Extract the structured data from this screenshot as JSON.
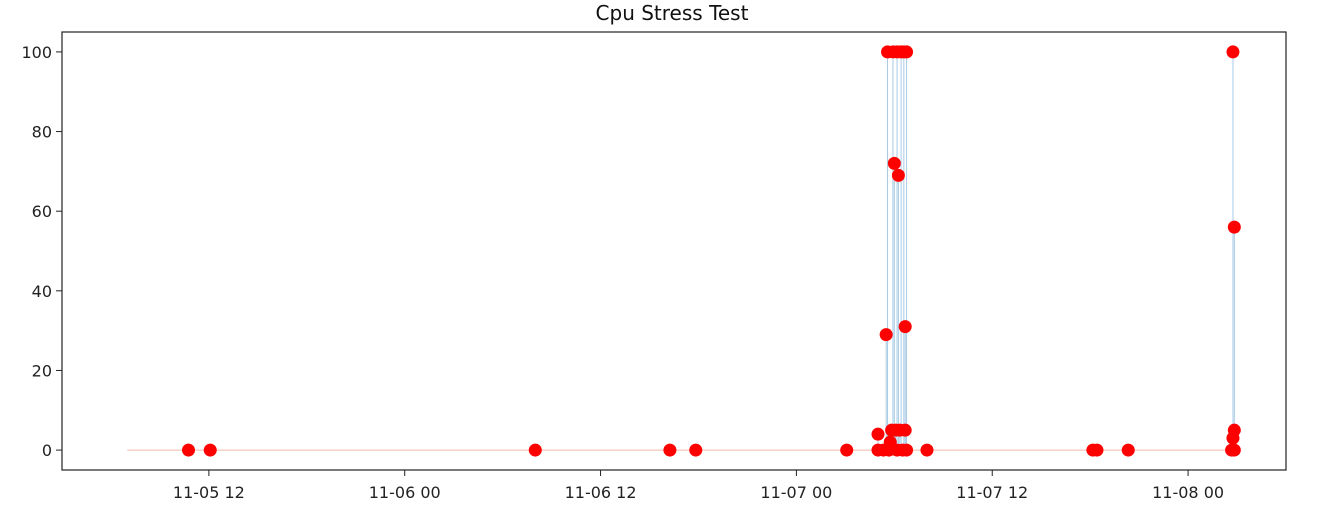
{
  "chart_data": {
    "type": "scatter",
    "title": "Cpu Stress Test",
    "xlabel": "",
    "ylabel": "",
    "x_tick_labels": [
      "11-05 12",
      "11-06 00",
      "11-06 12",
      "11-07 00",
      "11-07 12",
      "11-08 00"
    ],
    "x_tick_dates": [
      "2023-11-05 12:00",
      "2023-11-06 00:00",
      "2023-11-06 12:00",
      "2023-11-07 00:00",
      "2023-11-07 12:00",
      "2023-11-08 00:00"
    ],
    "y_ticks": [
      0,
      20,
      40,
      60,
      80,
      100
    ],
    "xlim": [
      "2023-11-05 03:00",
      "2023-11-08 06:00"
    ],
    "ylim": [
      -5,
      105
    ],
    "grid": false,
    "legend": "none",
    "colors": {
      "points": "#ff0000",
      "line": "#a9cbe6",
      "baseline": "#f2b8a8",
      "axes": "#222222"
    },
    "series": [
      {
        "x": [
          "2023-11-05 10:45",
          "2023-11-05 12:05",
          "2023-11-06 08:00",
          "2023-11-06 16:15",
          "2023-11-06 17:50",
          "2023-11-07 03:05",
          "2023-11-07 05:00",
          "2023-11-07 05:00",
          "2023-11-07 05:20",
          "2023-11-07 05:40",
          "2023-11-07 05:30",
          "2023-11-07 05:35",
          "2023-11-07 05:45",
          "2023-11-07 05:50",
          "2023-11-07 05:55",
          "2023-11-07 06:00",
          "2023-11-07 06:05",
          "2023-11-07 06:10",
          "2023-11-07 06:10",
          "2023-11-07 06:15",
          "2023-11-07 06:20",
          "2023-11-07 06:25",
          "2023-11-07 06:30",
          "2023-11-07 06:35",
          "2023-11-07 06:40",
          "2023-11-07 06:40",
          "2023-11-07 06:45",
          "2023-11-07 06:45",
          "2023-11-07 08:00",
          "2023-11-07 18:10",
          "2023-11-07 18:25",
          "2023-11-07 20:20",
          "2023-11-08 02:40",
          "2023-11-08 02:45",
          "2023-11-08 02:45",
          "2023-11-08 02:50",
          "2023-11-08 02:50",
          "2023-11-08 02:50"
        ],
        "y": [
          0,
          0,
          0,
          0,
          0,
          0,
          0,
          4,
          0,
          0,
          29,
          100,
          2,
          5,
          100,
          72,
          5,
          100,
          0,
          69,
          5,
          100,
          0,
          100,
          5,
          31,
          0,
          100,
          0,
          0,
          0,
          0,
          0,
          100,
          3,
          0,
          56,
          5
        ]
      }
    ]
  }
}
